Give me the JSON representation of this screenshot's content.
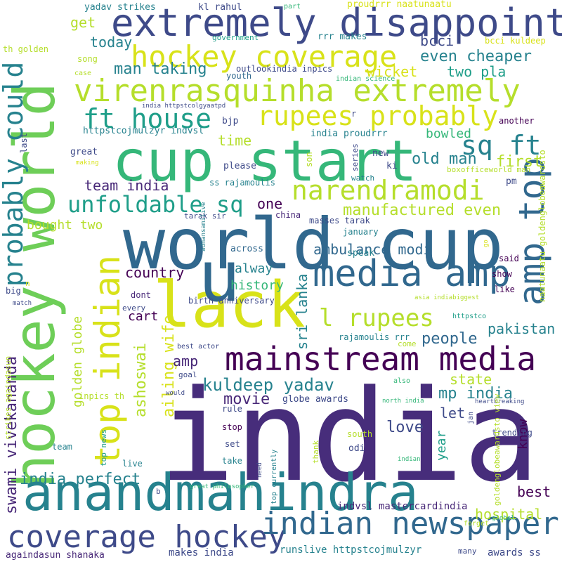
{
  "palette": {
    "c1": "#440154",
    "c2": "#482878",
    "c3": "#3e4a89",
    "c4": "#31688e",
    "c5": "#26828e",
    "c6": "#1f9e89",
    "c7": "#35b779",
    "c8": "#6ece58",
    "c9": "#b5de2b",
    "c10": "#fde725",
    "c11": "#d8e219"
  },
  "words": [
    "india",
    "world cup",
    "hockey world",
    "cup start",
    "anandmahindra",
    "lack",
    "extremely disappointed",
    "virenrasquinha extremely",
    "mainstream media",
    "media amp",
    "coverage hockey",
    "indian newspapers",
    "hockey coverage",
    "top indian",
    "amp top",
    "narendramodi",
    "rupees probably",
    "ft house",
    "sq ft",
    "probably could",
    "unfoldable sq",
    "l rupees",
    "u",
    "man taking",
    "today",
    "get",
    "kuldeep yadav",
    "ambulance modi",
    "manufactured even",
    "even cheaper",
    "two pla",
    "wicket",
    "bcci",
    "old man",
    "first",
    "team india",
    "bowled",
    "time",
    "india perfect",
    "swami vivekananda",
    "ashoswai",
    "ailing wife",
    "movie",
    "mp india",
    "state",
    "people",
    "pakistan",
    "sri lanka",
    "golden globe",
    "country",
    "alway",
    "history",
    "cart",
    "amp",
    "one",
    "bought two",
    "let",
    "year",
    "love",
    "know",
    "best",
    "hospital",
    "indvsl mastercardindia",
    "againdasun shanaka",
    "makes india",
    "runslive httpstcojmulzyr",
    "awards ss",
    "yadav strikes",
    "kl rahul",
    "proudrrr naatunaatu",
    "outlookindia inpics",
    "rrr makes",
    "government",
    "bcci kuldeep",
    "httpstcojmulzyr indvsl",
    "india proudrrr",
    "bjp",
    "great",
    "please",
    "ss rajamoulis",
    "tarak sir",
    "china",
    "masses tarak",
    "across",
    "speak",
    "january",
    "son",
    "new",
    "ki",
    "pm",
    "watch",
    "series",
    "another",
    "boxofficeworld man",
    "india httpstcolgyaatpd",
    "youth",
    "indian science",
    "song",
    "case",
    "th golden",
    "part",
    "r",
    "last",
    "making",
    "adnansamilive",
    "birth anniversary",
    "dont",
    "big",
    "n",
    "match",
    "every",
    "asia indiabiggest",
    "httpstco",
    "rajamoulis rrr",
    "come",
    "said",
    "show",
    "like",
    "go",
    "naatunaatu goldenglobeawardsto",
    "best actor",
    "goal",
    "would",
    "also",
    "north india",
    "globe awards",
    "rule",
    "inpics th",
    "strikes againdasun",
    "top news",
    "stop",
    "set",
    "take",
    "live",
    "team",
    "thank",
    "need",
    "top currently",
    "south",
    "odi",
    "indian",
    "trending",
    "heartbreaking",
    "jan",
    "goldenglobeawardsto view",
    "great philosopher",
    "b",
    "global",
    "forget",
    "many"
  ]
}
